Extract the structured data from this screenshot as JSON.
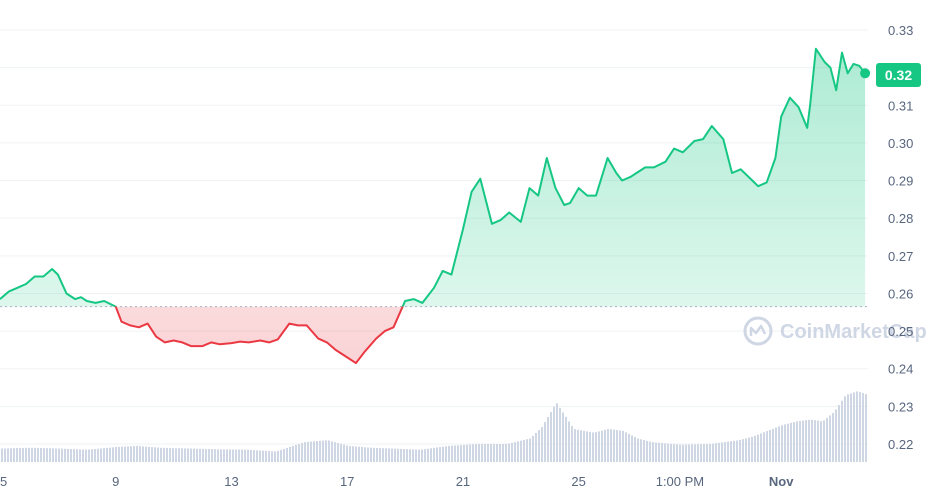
{
  "chart_data": {
    "type": "line",
    "watermark": "CoinMarketCap",
    "current_price_label": "0.32",
    "baseline_value": 0.2565,
    "ylim": [
      0.215,
      0.335
    ],
    "y_ticks": [
      "0.33",
      "0.32",
      "0.31",
      "0.30",
      "0.29",
      "0.28",
      "0.27",
      "0.26",
      "0.25",
      "0.24",
      "0.23",
      "0.22"
    ],
    "x_ticks": [
      {
        "label": "5",
        "pos": 0.0
      },
      {
        "label": "9",
        "pos": 4.0
      },
      {
        "label": "13",
        "pos": 8.0
      },
      {
        "label": "17",
        "pos": 12.0
      },
      {
        "label": "21",
        "pos": 16.0
      },
      {
        "label": "25",
        "pos": 20.0
      },
      {
        "label": "1:00 PM",
        "pos": 23.5
      },
      {
        "label": "Nov",
        "pos": 27.0,
        "bold": true
      }
    ],
    "xlim": [
      0,
      30
    ],
    "series": [
      {
        "x": [
          0.0,
          0.3,
          0.6,
          0.9,
          1.2,
          1.5,
          1.8,
          2.0,
          2.3,
          2.6,
          2.8,
          3.0,
          3.3,
          3.6,
          4.0,
          4.2,
          4.5,
          4.8,
          5.1,
          5.4,
          5.7,
          6.0,
          6.3,
          6.6,
          7.0,
          7.3,
          7.6,
          8.0,
          8.3,
          8.6,
          9.0,
          9.3,
          9.6,
          10.0,
          10.3,
          10.6,
          11.0,
          11.3,
          11.6,
          12.0,
          12.3,
          12.6,
          13.0,
          13.3,
          13.6,
          14.0,
          14.3,
          14.6,
          15.0,
          15.3,
          15.6,
          16.0,
          16.3,
          16.6,
          17.0,
          17.3,
          17.6,
          18.0,
          18.3,
          18.6,
          18.9,
          19.2,
          19.5,
          19.7,
          20.0,
          20.3,
          20.6,
          21.0,
          21.3,
          21.5,
          21.8,
          22.0,
          22.3,
          22.6,
          23.0,
          23.3,
          23.6,
          24.0,
          24.3,
          24.6,
          25.0,
          25.3,
          25.6,
          26.0,
          26.2,
          26.5,
          26.8,
          27.0,
          27.3,
          27.6,
          27.9,
          28.0,
          28.2,
          28.5,
          28.7,
          28.9,
          29.1,
          29.3,
          29.5,
          29.7,
          29.9
        ],
        "values": [
          0.2585,
          0.2605,
          0.2615,
          0.2625,
          0.2645,
          0.2645,
          0.2665,
          0.265,
          0.26,
          0.2585,
          0.259,
          0.258,
          0.2575,
          0.258,
          0.2565,
          0.2525,
          0.2515,
          0.251,
          0.252,
          0.2485,
          0.247,
          0.2475,
          0.247,
          0.246,
          0.246,
          0.247,
          0.2465,
          0.2468,
          0.2472,
          0.247,
          0.2475,
          0.247,
          0.2478,
          0.252,
          0.2515,
          0.2515,
          0.248,
          0.247,
          0.245,
          0.243,
          0.2415,
          0.2445,
          0.248,
          0.25,
          0.251,
          0.258,
          0.2585,
          0.2575,
          0.2615,
          0.266,
          0.265,
          0.277,
          0.287,
          0.2905,
          0.2785,
          0.2795,
          0.2815,
          0.279,
          0.288,
          0.286,
          0.296,
          0.288,
          0.2835,
          0.284,
          0.288,
          0.286,
          0.286,
          0.296,
          0.292,
          0.29,
          0.291,
          0.292,
          0.2935,
          0.2935,
          0.295,
          0.2985,
          0.2975,
          0.3005,
          0.301,
          0.3045,
          0.301,
          0.292,
          0.293,
          0.29,
          0.2885,
          0.2895,
          0.296,
          0.307,
          0.312,
          0.3095,
          0.304,
          0.31,
          0.325,
          0.3215,
          0.32,
          0.314,
          0.324,
          0.3185,
          0.321,
          0.3205,
          0.3185
        ]
      }
    ],
    "volume": {
      "x": [
        0.0,
        1.0,
        2.0,
        3.0,
        4.0,
        4.7,
        5.5,
        6.5,
        7.5,
        8.5,
        9.5,
        10.5,
        11.3,
        12.0,
        12.8,
        13.5,
        14.5,
        15.5,
        16.5,
        17.5,
        18.3,
        18.7,
        19.2,
        19.8,
        20.5,
        21.0,
        21.5,
        22.0,
        22.5,
        23.5,
        24.5,
        25.5,
        26.0,
        26.5,
        27.0,
        27.5,
        28.0,
        28.4,
        28.8,
        29.2,
        29.6,
        30.0
      ],
      "values": [
        0.2188,
        0.219,
        0.2188,
        0.2185,
        0.2192,
        0.2195,
        0.219,
        0.2188,
        0.2186,
        0.2185,
        0.218,
        0.2205,
        0.221,
        0.2195,
        0.219,
        0.2188,
        0.2185,
        0.2195,
        0.22,
        0.22,
        0.2215,
        0.2245,
        0.231,
        0.224,
        0.223,
        0.224,
        0.2235,
        0.2215,
        0.2205,
        0.2198,
        0.22,
        0.221,
        0.222,
        0.2235,
        0.225,
        0.226,
        0.2265,
        0.226,
        0.2285,
        0.233,
        0.234,
        0.233
      ]
    }
  }
}
